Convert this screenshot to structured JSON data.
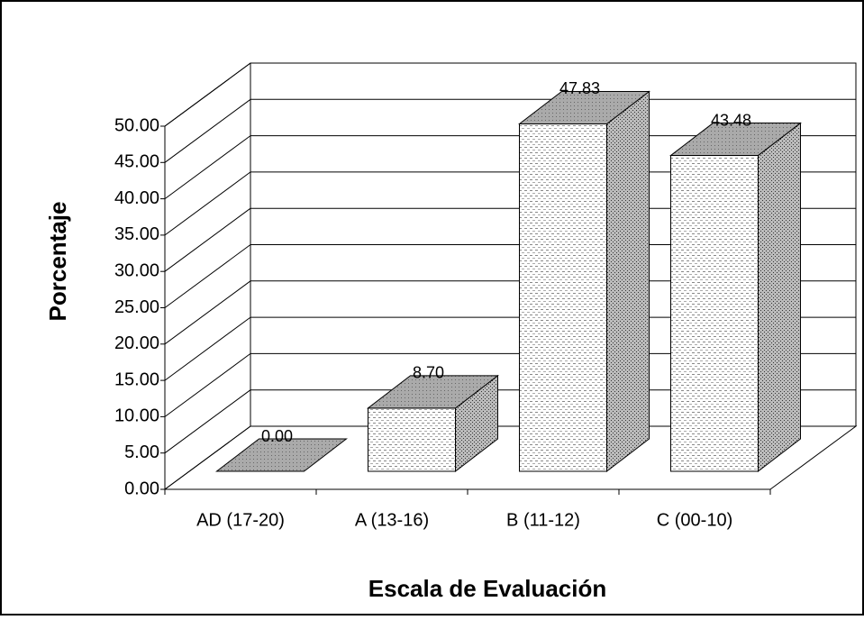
{
  "chart_data": {
    "type": "bar3d",
    "x_label": "Escala de Evaluación",
    "y_label": "Porcentaje",
    "categories": [
      "AD (17-20)",
      "A (13-16)",
      "B (11-12)",
      "C (00-10)"
    ],
    "values": [
      0,
      8.7,
      47.83,
      43.48
    ],
    "value_labels": [
      "0.00",
      "8.70",
      "47.83",
      "43.48"
    ],
    "ylim": [
      0,
      50
    ],
    "yticks": [
      {
        "value": 0,
        "label": "0.00"
      },
      {
        "value": 5,
        "label": "5.00"
      },
      {
        "value": 10,
        "label": "10.00"
      },
      {
        "value": 15,
        "label": "15.00"
      },
      {
        "value": 20,
        "label": "20.00"
      },
      {
        "value": 25,
        "label": "25.00"
      },
      {
        "value": 30,
        "label": "30.00"
      },
      {
        "value": 35,
        "label": "35.00"
      },
      {
        "value": 40,
        "label": "40.00"
      },
      {
        "value": 45,
        "label": "45.00"
      },
      {
        "value": 50,
        "label": "50.00"
      }
    ],
    "grid": true
  }
}
